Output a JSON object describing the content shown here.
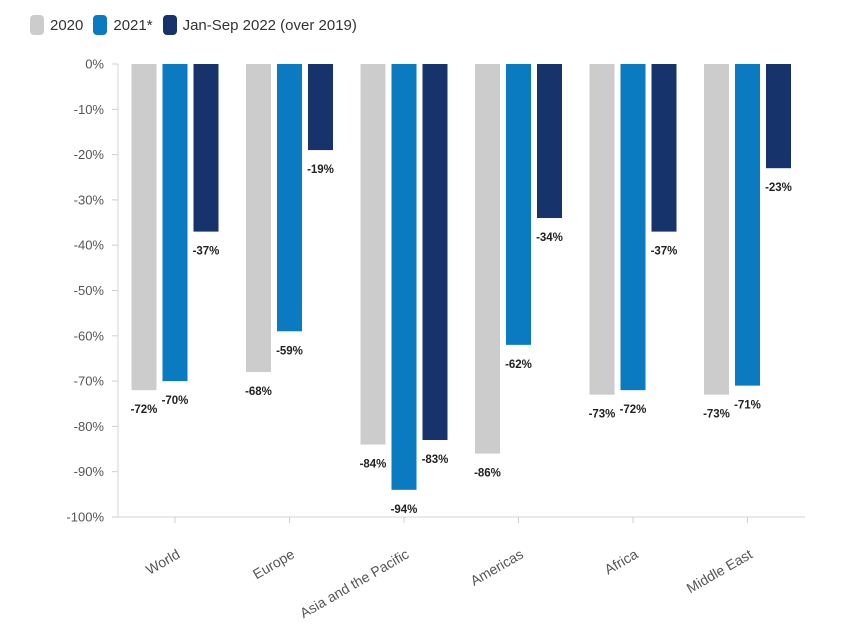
{
  "chart_data": {
    "type": "bar",
    "title": "",
    "xlabel": "",
    "ylabel": "",
    "ylim": [
      -100,
      0
    ],
    "yticks": [
      0,
      -10,
      -20,
      -30,
      -40,
      -50,
      -60,
      -70,
      -80,
      -90,
      -100
    ],
    "ytick_labels": [
      "0%",
      "-10%",
      "-20%",
      "-30%",
      "-40%",
      "-50%",
      "-60%",
      "-70%",
      "-80%",
      "-90%",
      "-100%"
    ],
    "categories": [
      "World",
      "Europe",
      "Asia and the Pacific",
      "Americas",
      "Africa",
      "Middle East"
    ],
    "series": [
      {
        "name": "2020",
        "color": "#cccccc",
        "values": [
          -72,
          -68,
          -84,
          -86,
          -73,
          -73
        ],
        "labels": [
          "-72%",
          "-68%",
          "-84%",
          "-86%",
          "-73%",
          "-73%"
        ]
      },
      {
        "name": "2021*",
        "color": "#0a7bc1",
        "values": [
          -70,
          -59,
          -94,
          -62,
          -72,
          -71
        ],
        "labels": [
          "-70%",
          "-59%",
          "-94%",
          "-62%",
          "-72%",
          "-71%"
        ]
      },
      {
        "name": "Jan-Sep 2022 (over 2019)",
        "color": "#17336b",
        "values": [
          -37,
          -19,
          -83,
          -34,
          -37,
          -23
        ],
        "labels": [
          "-37%",
          "-19%",
          "-83%",
          "-34%",
          "-37%",
          "-23%"
        ]
      }
    ],
    "legend_position": "top-left",
    "grid": false
  }
}
